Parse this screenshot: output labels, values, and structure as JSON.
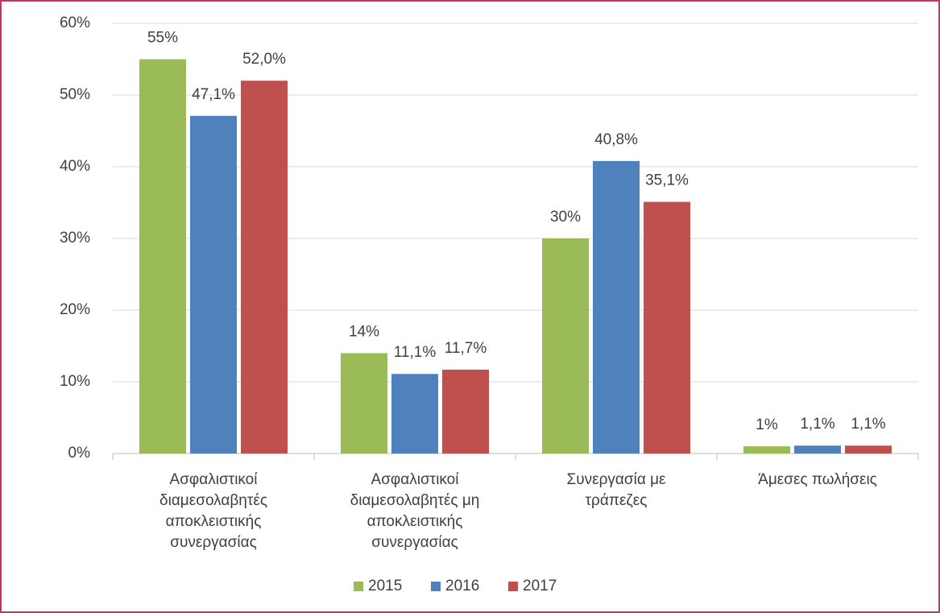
{
  "chart_data": {
    "type": "bar",
    "categories": [
      "Ασφαλιστικοί διαμεσολαβητές αποκλειστικής συνεργασίας",
      "Ασφαλιστικοί διαμεσολαβητές μη αποκλειστικής συνεργασίας",
      "Συνεργασία με τράπεζες",
      "Άμεσες πωλήσεις"
    ],
    "series": [
      {
        "name": "2015",
        "color": "#9bbb59",
        "values": [
          55,
          14,
          30,
          1
        ],
        "value_labels": [
          "55%",
          "14%",
          "30%",
          "1%"
        ]
      },
      {
        "name": "2016",
        "color": "#4f81bd",
        "values": [
          47.1,
          11.1,
          40.8,
          1.1
        ],
        "value_labels": [
          "47,1%",
          "11,1%",
          "40,8%",
          "1,1%"
        ]
      },
      {
        "name": "2017",
        "color": "#c0504d",
        "values": [
          52.0,
          11.7,
          35.1,
          1.1
        ],
        "value_labels": [
          "52,0%",
          "11,7%",
          "35,1%",
          "1,1%"
        ]
      }
    ],
    "ylim": [
      0,
      60
    ],
    "yticks": [
      {
        "value": 0,
        "label": "0%"
      },
      {
        "value": 10,
        "label": "10%"
      },
      {
        "value": 20,
        "label": "20%"
      },
      {
        "value": 30,
        "label": "30%"
      },
      {
        "value": 40,
        "label": "40%"
      },
      {
        "value": 50,
        "label": "50%"
      },
      {
        "value": 60,
        "label": "60%"
      }
    ],
    "grid": true,
    "legend": "bottom"
  }
}
